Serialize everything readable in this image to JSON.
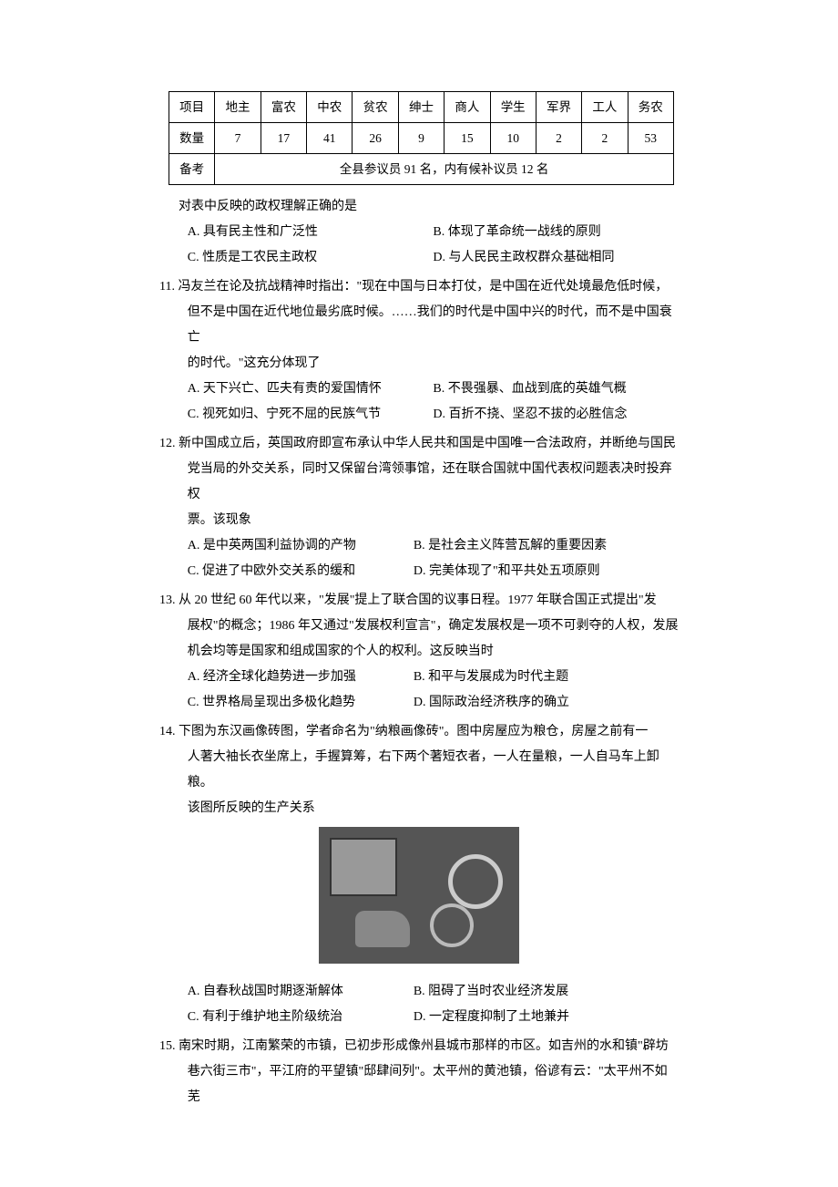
{
  "table": {
    "row1": [
      "项目",
      "地主",
      "富农",
      "中农",
      "贫农",
      "绅士",
      "商人",
      "学生",
      "军界",
      "工人",
      "务农"
    ],
    "row2": [
      "数量",
      "7",
      "17",
      "41",
      "26",
      "9",
      "15",
      "10",
      "2",
      "2",
      "53"
    ],
    "row3_label": "备考",
    "row3_text": "全县参议员 91 名，内有候补议员 12 名"
  },
  "q10_stem": "对表中反映的政权理解正确的是",
  "q10": {
    "A": "A. 具有民主性和广泛性",
    "B": "B. 体现了革命统一战线的原则",
    "C": "C. 性质是工农民主政权",
    "D": "D. 与人民民主政权群众基础相同"
  },
  "q11_l1": "11. 冯友兰在论及抗战精神时指出：\"现在中国与日本打仗，是中国在近代处境最危低时候，",
  "q11_l2": "但不是中国在近代地位最劣底时候。……我们的时代是中国中兴的时代，而不是中国衰亡",
  "q11_l3": "的时代。\"这充分体现了",
  "q11": {
    "A": "A. 天下兴亡、匹夫有责的爱国情怀",
    "B": "B. 不畏强暴、血战到底的英雄气概",
    "C": "C. 视死如归、宁死不屈的民族气节",
    "D": "D. 百折不挠、坚忍不拔的必胜信念"
  },
  "q12_l1": "12. 新中国成立后，英国政府即宣布承认中华人民共和国是中国唯一合法政府，并断绝与国民",
  "q12_l2": "党当局的外交关系，同时又保留台湾领事馆，还在联合国就中国代表权问题表决时投弃权",
  "q12_l3": "票。该现象",
  "q12": {
    "A": "A. 是中英两国利益协调的产物",
    "B": "B. 是社会主义阵营瓦解的重要因素",
    "C": "C. 促进了中欧外交关系的缓和",
    "D": "D. 完美体现了\"和平共处五项原则",
    "endquote": "\""
  },
  "q13_l1": "13. 从 20 世纪 60 年代以来，\"发展\"提上了联合国的议事日程。1977 年联合国正式提出\"发",
  "q13_l2": "展权\"的概念；1986 年又通过\"发展权利宣言\"，确定发展权是一项不可剥夺的人权，发展",
  "q13_l3": "机会均等是国家和组成国家的个人的权利。这反映当时",
  "q13": {
    "A": "A. 经济全球化趋势进一步加强",
    "B": "B. 和平与发展成为时代主题",
    "C": "C. 世界格局呈现出多极化趋势",
    "D": "D. 国际政治经济秩序的确立"
  },
  "q14_l1": "14. 下图为东汉画像砖图，学者命名为\"纳粮画像砖\"。图中房屋应为粮仓，房屋之前有一",
  "q14_l2": "人著大袖长衣坐席上，手握算筹，右下两个著短衣者，一人在量粮，一人自马车上卸粮。",
  "q14_l3": "该图所反映的生产关系",
  "q14": {
    "A": "A. 自春秋战国时期逐渐解体",
    "B": "B. 阻碍了当时农业经济发展",
    "C": "C. 有利于维护地主阶级统治",
    "D": "D. 一定程度抑制了土地兼并"
  },
  "q15_l1": "15. 南宋时期，江南繁荣的市镇，已初步形成像州县城市那样的市区。如吉州的水和镇\"辟坊",
  "q15_l2": "巷六街三市\"，平江府的平望镇\"邸肆间列\"。太平州的黄池镇，俗谚有云：\"太平州不如芜"
}
